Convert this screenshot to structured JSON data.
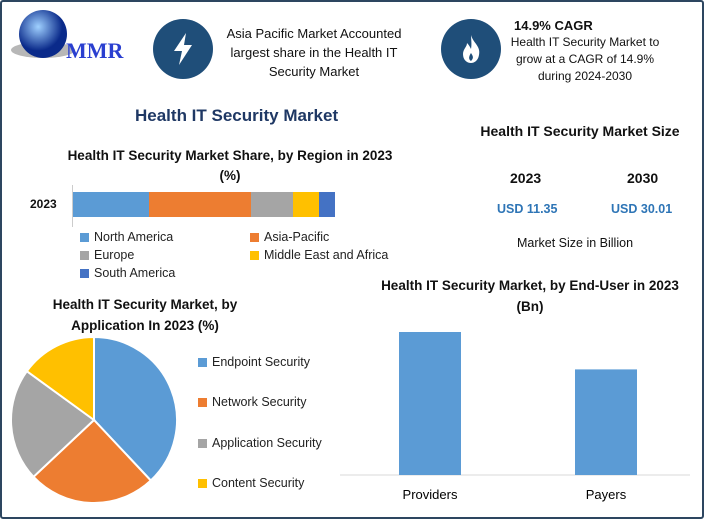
{
  "logo": {
    "text": "MMR"
  },
  "highlight1": {
    "icon": "lightning-icon",
    "text": "Asia Pacific Market Accounted largest share in the Health IT Security Market"
  },
  "highlight2": {
    "icon": "flame-icon",
    "title": "14.9% CAGR",
    "text": "Health IT Security Market to grow at a CAGR of 14.9% during 2024-2030"
  },
  "main_title": "Health IT Security Market",
  "size_panel": {
    "title": "Health IT Security Market Size",
    "years": [
      "2023",
      "2030"
    ],
    "values": [
      "USD 11.35",
      "USD 30.01"
    ],
    "note": "Market Size in Billion"
  },
  "colors": {
    "blue": "#5b9bd5",
    "orange": "#ed7d31",
    "gray": "#a5a5a5",
    "yellow": "#ffc000",
    "darkblue": "#4472c4",
    "navy": "#1f4e79"
  },
  "chart_data": [
    {
      "type": "bar",
      "orientation": "horizontal-stacked",
      "title": "Health IT Security Market Share, by Region in 2023 (%)",
      "categories": [
        "2023"
      ],
      "series": [
        {
          "name": "North America",
          "values": [
            29
          ]
        },
        {
          "name": "Asia-Pacific",
          "values": [
            39
          ]
        },
        {
          "name": "Europe",
          "values": [
            16
          ]
        },
        {
          "name": "Middle East and Africa",
          "values": [
            10
          ]
        },
        {
          "name": "South America",
          "values": [
            6
          ]
        }
      ],
      "legend": "bottom"
    },
    {
      "type": "pie",
      "title": "Health IT Security Market, by Application In 2023 (%)",
      "labels": [
        "Endpoint Security",
        "Network Security",
        "Application Security",
        "Content Security"
      ],
      "values": [
        38,
        25,
        22,
        15
      ],
      "legend": "right"
    },
    {
      "type": "bar",
      "title": "Health IT Security Market, by End-User in 2023 (Bn)",
      "categories": [
        "Providers",
        "Payers"
      ],
      "values": [
        6.5,
        4.8
      ],
      "ylim": [
        0,
        7.5
      ]
    }
  ]
}
